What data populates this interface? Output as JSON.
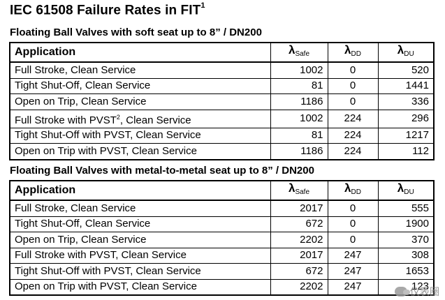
{
  "title": {
    "text": "IEC 61508 Failure Rates in FIT",
    "footnote": "1"
  },
  "table1": {
    "caption": "Floating Ball Valves with soft seat up to 8” / DN200",
    "headers": {
      "application": "Application",
      "lambda": "λ",
      "safe": "Safe",
      "dd": "DD",
      "du": "DU"
    },
    "rows": [
      {
        "app": "Full Stroke, Clean Service",
        "app_sup": "",
        "app_suffix": "",
        "safe": "1002",
        "dd": "0",
        "du": "520"
      },
      {
        "app": "Tight Shut-Off, Clean Service",
        "app_sup": "",
        "app_suffix": "",
        "safe": "81",
        "dd": "0",
        "du": "1441"
      },
      {
        "app": "Open on Trip, Clean Service",
        "app_sup": "",
        "app_suffix": "",
        "safe": "1186",
        "dd": "0",
        "du": "336"
      },
      {
        "app": "Full Stroke with PVST",
        "app_sup": "2",
        "app_suffix": ", Clean Service",
        "safe": "1002",
        "dd": "224",
        "du": "296"
      },
      {
        "app": "Tight Shut-Off with PVST, Clean Service",
        "app_sup": "",
        "app_suffix": "",
        "safe": "81",
        "dd": "224",
        "du": "1217"
      },
      {
        "app": "Open on Trip with PVST, Clean Service",
        "app_sup": "",
        "app_suffix": "",
        "safe": "1186",
        "dd": "224",
        "du": "112"
      }
    ]
  },
  "table2": {
    "caption": "Floating Ball Valves with metal-to-metal seat up to 8” / DN200",
    "headers": {
      "application": "Application",
      "lambda": "λ",
      "safe": "Safe",
      "dd": "DD",
      "du": "DU"
    },
    "rows": [
      {
        "app": "Full Stroke, Clean Service",
        "safe": "2017",
        "dd": "0",
        "du": "555"
      },
      {
        "app": "Tight Shut-Off, Clean Service",
        "safe": "672",
        "dd": "0",
        "du": "1900"
      },
      {
        "app": "Open on Trip, Clean Service",
        "safe": "2202",
        "dd": "0",
        "du": "370"
      },
      {
        "app": "Full Stroke with PVST, Clean Service",
        "safe": "2017",
        "dd": "247",
        "du": "308"
      },
      {
        "app": "Tight Shut-Off with PVST, Clean Service",
        "safe": "672",
        "dd": "247",
        "du": "1653"
      },
      {
        "app": "Open on Trip with PVST, Clean Service",
        "safe": "2202",
        "dd": "247",
        "du": "123"
      }
    ]
  },
  "watermark": {
    "text": "仪表圈",
    "icon": "wechat-icon"
  }
}
